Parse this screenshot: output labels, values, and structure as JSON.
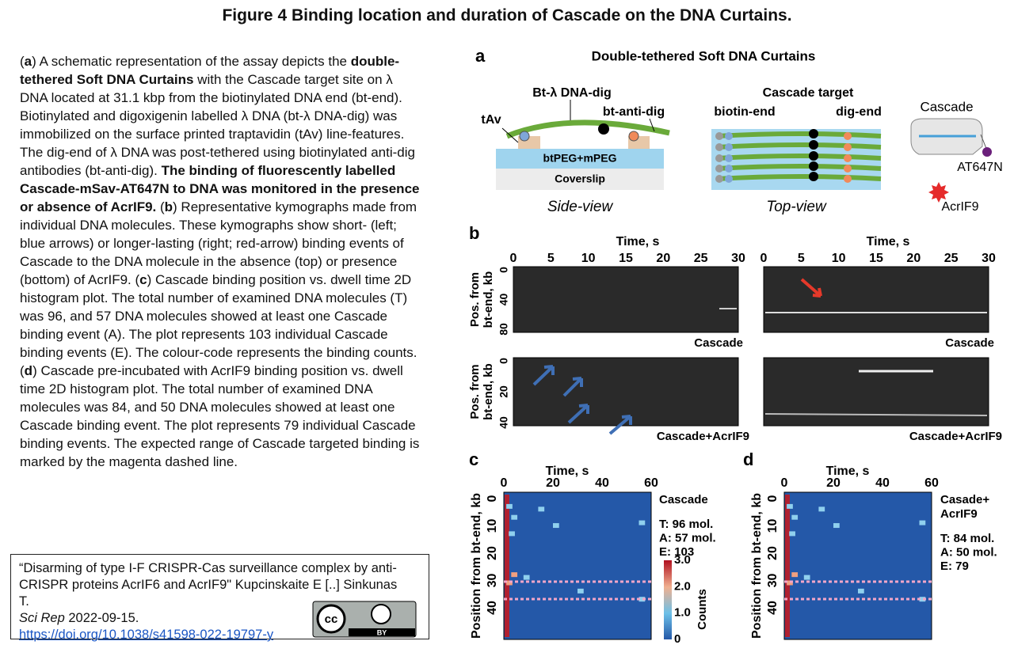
{
  "title": "Figure 4 Binding location and duration of Cascade on the DNA Curtains.",
  "caption": [
    {
      "text": "(",
      "bold": false
    },
    {
      "text": "a",
      "bold": true
    },
    {
      "text": ") A schematic representation of the assay depicts the ",
      "bold": false
    },
    {
      "text": "double-tethered Soft DNA Curtains",
      "bold": true
    },
    {
      "text": " with the Cascade target site on λ DNA located at 31.1 kbp from the biotinylated DNA end (bt-end). Biotinylated and digoxigenin labelled λ DNA (bt-λ DNA-dig) was immobilized on the surface printed traptavidin (tAv) line-features. The dig-end of λ DNA was post-tethered using biotinylated anti-dig antibodies (bt-anti-dig). ",
      "bold": false
    },
    {
      "text": "The binding of fluorescently labelled Cascade-mSav-AT647N to DNA was monitored in the presence or absence of AcrIF9.",
      "bold": true
    },
    {
      "text": " (",
      "bold": false
    },
    {
      "text": "b",
      "bold": true
    },
    {
      "text": ") Representative kymographs made from individual DNA molecules. These kymographs show short- (left; blue arrows) or longer-lasting (right; red-arrow) binding events of Cascade to the DNA molecule in the absence (top) or presence (bottom) of AcrIF9. (",
      "bold": false
    },
    {
      "text": "c",
      "bold": true
    },
    {
      "text": ") Cascade binding position vs. dwell time 2D histogram plot. The total number of examined DNA molecules (T) was 96, and 57 DNA molecules showed at least one Cascade binding event (A). The plot represents 103 individual Cascade binding events (E). The colour-code represents the binding counts. (",
      "bold": false
    },
    {
      "text": "d",
      "bold": true
    },
    {
      "text": ") Cascade pre-incubated with AcrIF9 binding position vs. dwell time 2D histogram plot. The total number of examined DNA molecules was 84, and 50 DNA molecules showed at least one Cascade binding event. The plot represents 79 individual Cascade binding events. The expected range of Cascade targeted binding is marked by the magenta dashed line.",
      "bold": false
    }
  ],
  "citation": {
    "text": "“Disarming of type I-F CRISPR-Cas surveillance complex by anti-CRISPR proteins AcrIF6 and AcrIF9\" Kupcinskaite E [..] Sinkunas T.",
    "journal": "Sci Rep",
    "date": " 2022-09-15.",
    "doi": "https://doi.org/10.1038/s41598-022-19797-y",
    "license": "BY"
  },
  "figure": {
    "a": {
      "label": "a",
      "title": "Double-tethered Soft DNA Curtains",
      "dna": "Bt-λ DNA-dig",
      "anti_dig": "bt-anti-dig",
      "tav": "tAv",
      "peg": "btPEG+mPEG",
      "coverslip": "Coverslip",
      "side": "Side-view",
      "target": "Cascade target",
      "biotin_end": "biotin-end",
      "dig_end": "dig-end",
      "top": "Top-view",
      "cascade": "Cascade",
      "dye": "AT647N",
      "acr": "AcrIF9"
    },
    "b": {
      "label": "b",
      "x_label": "Time,  s",
      "x_ticks": [
        "0",
        "5",
        "10",
        "15",
        "20",
        "25",
        "30"
      ],
      "y_label_1": "Pos.  from",
      "y_label_2": "bt-end,  kb",
      "y_ticks_top": [
        "0",
        "40",
        "80"
      ],
      "y_ticks_bottom": [
        "0",
        "20",
        "40"
      ],
      "panels": [
        "Cascade",
        "Cascade",
        "Cascade+AcrIF9",
        "Cascade+AcrIF9"
      ]
    },
    "c": {
      "label": "c",
      "x_label": "Time,  s",
      "x_ticks": [
        "0",
        "20",
        "40",
        "60"
      ],
      "y_ticks": [
        "0",
        "10",
        "20",
        "30",
        "40"
      ],
      "y_label": "Position from bt-end, kb",
      "name": [
        "Cascade"
      ],
      "stats": [
        "T:  96 mol.",
        "A: 57 mol.",
        "E: 103"
      ],
      "colorbar_ticks": [
        "3.0",
        "2.0",
        "1.0",
        "0"
      ],
      "colorbar_label": "Counts"
    },
    "d": {
      "label": "d",
      "x_label": "Time,  s",
      "x_ticks": [
        "0",
        "20",
        "40",
        "60"
      ],
      "y_ticks": [
        "0",
        "10",
        "20",
        "30",
        "40"
      ],
      "y_label": "Position from bt-end, kb",
      "name": [
        "Casade+",
        "AcrIF9"
      ],
      "stats": [
        "T:  84 mol.",
        "A: 50 mol.",
        "E: 79"
      ]
    }
  }
}
